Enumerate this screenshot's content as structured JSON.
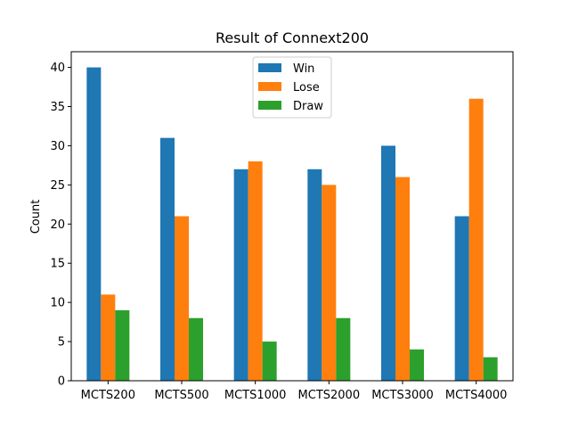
{
  "chart_data": {
    "type": "bar",
    "title": "Result of Connext200",
    "xlabel": "",
    "ylabel": "Count",
    "ylim": [
      0,
      42
    ],
    "yticks": [
      0,
      5,
      10,
      15,
      20,
      25,
      30,
      35,
      40
    ],
    "categories": [
      "MCTS200",
      "MCTS500",
      "MCTS1000",
      "MCTS2000",
      "MCTS3000",
      "MCTS4000"
    ],
    "series": [
      {
        "name": "Win",
        "color": "#1f77b4",
        "values": [
          40,
          31,
          27,
          27,
          30,
          21
        ]
      },
      {
        "name": "Lose",
        "color": "#ff7f0e",
        "values": [
          11,
          21,
          28,
          25,
          26,
          36
        ]
      },
      {
        "name": "Draw",
        "color": "#2ca02c",
        "values": [
          9,
          8,
          5,
          8,
          4,
          3
        ]
      }
    ],
    "legend_position": "upper-center",
    "grid": false
  }
}
